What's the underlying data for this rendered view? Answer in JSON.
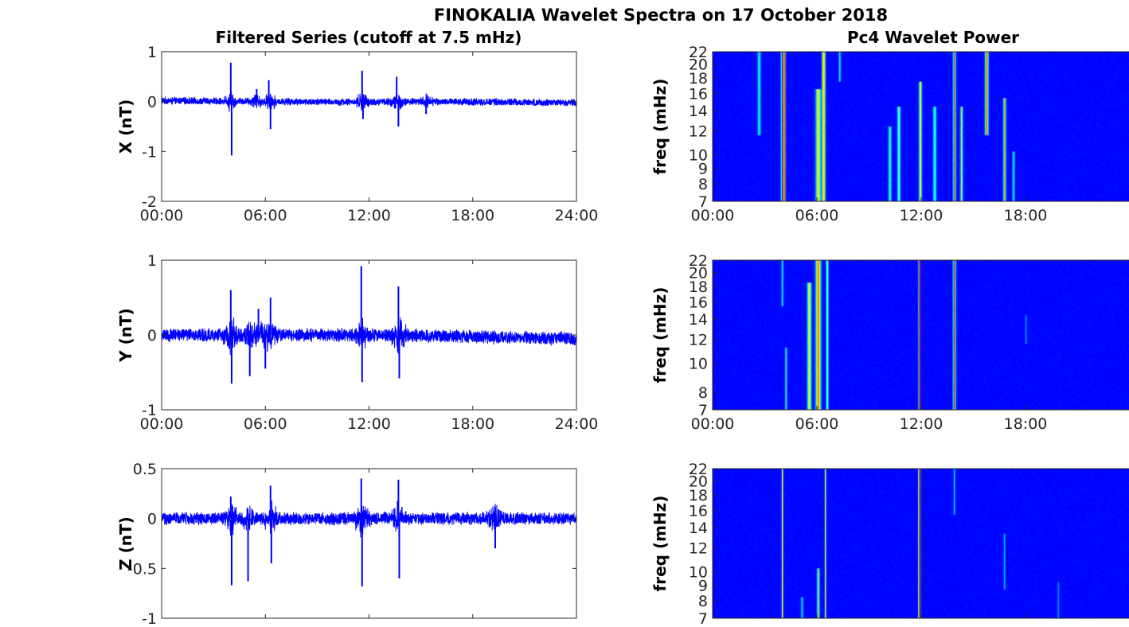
{
  "figure": {
    "suptitle": "FINOKALIA Wavelet Spectra on 17 October 2018",
    "left_title": "Filtered Series (cutoff at 7.5 mHz)",
    "right_title": "Pc4 Wavelet Power"
  },
  "chart_data": [
    {
      "type": "line",
      "component": "X",
      "ylabel": "X (nT)",
      "xlabel": "",
      "x_ticks": [
        "00:00",
        "06:00",
        "12:00",
        "18:00",
        "24:00"
      ],
      "x_range_hours": [
        0,
        24
      ],
      "ylim": [
        -2,
        1
      ],
      "y_ticks": [
        1,
        0,
        -1,
        -2
      ],
      "y_tick_labels": [
        "1",
        "0",
        "-1",
        "-2"
      ],
      "line_color": "#0000ff",
      "noise_amplitude": 0.08,
      "baseline_drift": [
        [
          0,
          0.02
        ],
        [
          10,
          -0.01
        ],
        [
          16,
          0.0
        ],
        [
          24,
          -0.02
        ]
      ],
      "spikes": [
        {
          "t": 4.0,
          "value": 0.78
        },
        {
          "t": 4.05,
          "value": -1.08
        },
        {
          "t": 5.5,
          "value": 0.25
        },
        {
          "t": 6.2,
          "value": 0.43
        },
        {
          "t": 6.3,
          "value": -0.55
        },
        {
          "t": 11.6,
          "value": 0.62
        },
        {
          "t": 11.65,
          "value": -0.35
        },
        {
          "t": 13.6,
          "value": 0.5
        },
        {
          "t": 13.7,
          "value": -0.5
        },
        {
          "t": 15.3,
          "value": -0.25
        }
      ]
    },
    {
      "type": "line",
      "component": "Y",
      "ylabel": "Y (nT)",
      "xlabel": "",
      "x_ticks": [
        "00:00",
        "06:00",
        "12:00",
        "18:00",
        "24:00"
      ],
      "x_range_hours": [
        0,
        24
      ],
      "ylim": [
        -1,
        1
      ],
      "y_ticks": [
        1,
        0,
        -1
      ],
      "y_tick_labels": [
        "1",
        "0",
        "-1"
      ],
      "line_color": "#0000ff",
      "noise_amplitude": 0.1,
      "baseline_drift": [
        [
          0,
          0.0
        ],
        [
          12,
          0.0
        ],
        [
          24,
          -0.05
        ]
      ],
      "spikes": [
        {
          "t": 4.0,
          "value": 0.6
        },
        {
          "t": 4.05,
          "value": -0.65
        },
        {
          "t": 5.1,
          "value": -0.55
        },
        {
          "t": 5.6,
          "value": 0.35
        },
        {
          "t": 6.0,
          "value": -0.45
        },
        {
          "t": 6.3,
          "value": 0.5
        },
        {
          "t": 11.55,
          "value": 0.92
        },
        {
          "t": 11.6,
          "value": -0.63
        },
        {
          "t": 13.7,
          "value": 0.65
        },
        {
          "t": 13.75,
          "value": -0.58
        }
      ]
    },
    {
      "type": "line",
      "component": "Z",
      "ylabel": "Z (nT)",
      "xlabel": "",
      "x_ticks": [],
      "x_range_hours": [
        0,
        24
      ],
      "ylim": [
        -1,
        0.5
      ],
      "y_ticks": [
        0.5,
        0,
        -0.5,
        -1
      ],
      "y_tick_labels": [
        "0.5",
        "0",
        "-0.5",
        "-1"
      ],
      "line_color": "#0000ff",
      "noise_amplitude": 0.07,
      "baseline_drift": [
        [
          0,
          0.0
        ],
        [
          24,
          0.0
        ]
      ],
      "spikes": [
        {
          "t": 4.0,
          "value": 0.22
        },
        {
          "t": 4.05,
          "value": -0.67
        },
        {
          "t": 5.0,
          "value": -0.63
        },
        {
          "t": 6.3,
          "value": 0.33
        },
        {
          "t": 6.35,
          "value": -0.45
        },
        {
          "t": 11.55,
          "value": 0.4
        },
        {
          "t": 11.6,
          "value": -0.68
        },
        {
          "t": 13.7,
          "value": 0.39
        },
        {
          "t": 13.75,
          "value": -0.6
        },
        {
          "t": 19.3,
          "value": -0.3
        }
      ]
    },
    {
      "type": "heatmap",
      "component": "X",
      "ylabel": "freq (mHz)",
      "x_ticks": [
        "00:00",
        "06:00",
        "12:00",
        "18:00",
        "00:00"
      ],
      "x_range_hours": [
        0,
        24
      ],
      "y_range_mhz": [
        7,
        22
      ],
      "y_ticks": [
        22,
        20,
        18,
        16,
        14,
        12,
        10,
        9,
        8,
        7
      ],
      "y_scale": "log",
      "colormap": "jet",
      "ridges": [
        {
          "t": 2.6,
          "f": [
            12,
            22
          ],
          "power": 0.3,
          "width_h": 0.08
        },
        {
          "t": 3.9,
          "f": [
            7,
            22
          ],
          "power": 0.85,
          "width_h": 0.06
        },
        {
          "t": 4.05,
          "f": [
            7,
            22
          ],
          "power": 1.0,
          "width_h": 0.03
        },
        {
          "t": 5.9,
          "f": [
            7,
            16
          ],
          "power": 0.6,
          "width_h": 0.12
        },
        {
          "t": 6.2,
          "f": [
            7,
            22
          ],
          "power": 0.7,
          "width_h": 0.08
        },
        {
          "t": 7.1,
          "f": [
            18,
            22
          ],
          "power": 0.3,
          "width_h": 0.05
        },
        {
          "t": 9.9,
          "f": [
            7,
            12
          ],
          "power": 0.35,
          "width_h": 0.08
        },
        {
          "t": 10.4,
          "f": [
            7,
            14
          ],
          "power": 0.4,
          "width_h": 0.08
        },
        {
          "t": 11.6,
          "f": [
            7,
            17
          ],
          "power": 0.55,
          "width_h": 0.07
        },
        {
          "t": 12.4,
          "f": [
            7,
            14
          ],
          "power": 0.35,
          "width_h": 0.08
        },
        {
          "t": 13.5,
          "f": [
            7,
            22
          ],
          "power": 0.75,
          "width_h": 0.06
        },
        {
          "t": 13.9,
          "f": [
            7,
            14
          ],
          "power": 0.5,
          "width_h": 0.06
        },
        {
          "t": 15.3,
          "f": [
            12,
            22
          ],
          "power": 0.75,
          "width_h": 0.08
        },
        {
          "t": 16.3,
          "f": [
            7,
            15
          ],
          "power": 0.65,
          "width_h": 0.06
        },
        {
          "t": 16.8,
          "f": [
            7,
            10
          ],
          "power": 0.3,
          "width_h": 0.06
        }
      ]
    },
    {
      "type": "heatmap",
      "component": "Y",
      "ylabel": "freq (mHz)",
      "x_ticks": [
        "00:00",
        "06:00",
        "12:00",
        "18:00",
        "00:00"
      ],
      "x_range_hours": [
        0,
        24
      ],
      "y_range_mhz": [
        7,
        22
      ],
      "y_ticks": [
        22,
        20,
        18,
        16,
        14,
        12,
        10,
        8,
        7
      ],
      "y_scale": "log",
      "colormap": "jet",
      "ridges": [
        {
          "t": 3.9,
          "f": [
            16,
            22
          ],
          "power": 0.3,
          "width_h": 0.05
        },
        {
          "t": 4.1,
          "f": [
            7,
            11
          ],
          "power": 0.35,
          "width_h": 0.05
        },
        {
          "t": 5.4,
          "f": [
            7,
            18
          ],
          "power": 0.55,
          "width_h": 0.1
        },
        {
          "t": 5.9,
          "f": [
            7,
            22
          ],
          "power": 0.75,
          "width_h": 0.12
        },
        {
          "t": 6.4,
          "f": [
            7,
            22
          ],
          "power": 0.45,
          "width_h": 0.06
        },
        {
          "t": 11.55,
          "f": [
            7,
            22
          ],
          "power": 1.0,
          "width_h": 0.04
        },
        {
          "t": 13.5,
          "f": [
            7,
            22
          ],
          "power": 0.8,
          "width_h": 0.06
        },
        {
          "t": 17.5,
          "f": [
            12,
            14
          ],
          "power": 0.15,
          "width_h": 0.05
        }
      ]
    },
    {
      "type": "heatmap",
      "component": "Z",
      "ylabel": "freq (mHz)",
      "x_ticks": [],
      "x_range_hours": [
        0,
        24
      ],
      "y_range_mhz": [
        7,
        22
      ],
      "y_ticks": [
        22,
        20,
        18,
        16,
        14,
        12,
        10,
        9,
        8,
        7
      ],
      "y_scale": "log",
      "colormap": "jet",
      "ridges": [
        {
          "t": 3.9,
          "f": [
            7,
            22
          ],
          "power": 0.55,
          "width_h": 0.04
        },
        {
          "t": 5.0,
          "f": [
            7,
            8
          ],
          "power": 0.3,
          "width_h": 0.05
        },
        {
          "t": 5.9,
          "f": [
            7,
            10
          ],
          "power": 0.5,
          "width_h": 0.06
        },
        {
          "t": 6.3,
          "f": [
            7,
            22
          ],
          "power": 0.5,
          "width_h": 0.04
        },
        {
          "t": 11.55,
          "f": [
            7,
            22
          ],
          "power": 0.95,
          "width_h": 0.05
        },
        {
          "t": 13.5,
          "f": [
            16,
            22
          ],
          "power": 0.25,
          "width_h": 0.04
        },
        {
          "t": 16.3,
          "f": [
            9,
            13
          ],
          "power": 0.2,
          "width_h": 0.05
        },
        {
          "t": 19.3,
          "f": [
            7,
            9
          ],
          "power": 0.15,
          "width_h": 0.05
        }
      ]
    }
  ]
}
